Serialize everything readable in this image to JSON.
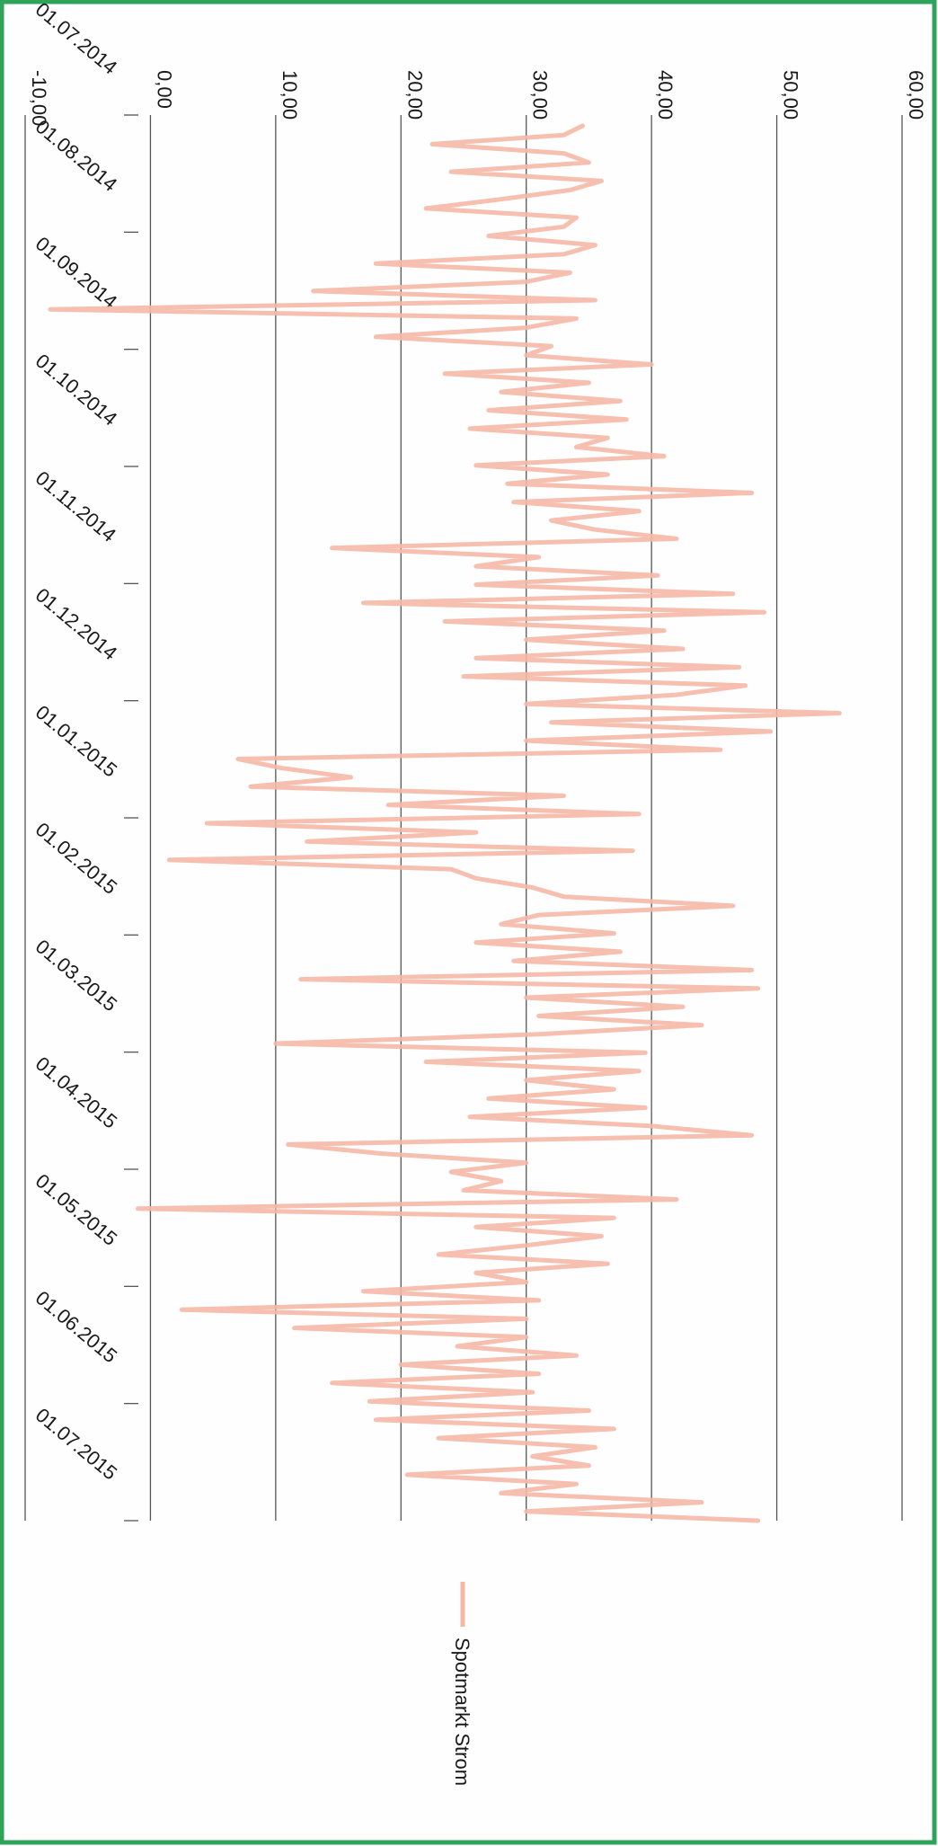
{
  "chart_data": {
    "type": "line",
    "title": "",
    "xlabel": "",
    "ylabel": "",
    "ylim": [
      -10,
      60
    ],
    "y_ticks": [
      "-10,00",
      "0,00",
      "10,00",
      "20,00",
      "30,00",
      "40,00",
      "50,00",
      "60,00"
    ],
    "x_tick_labels": [
      "01.07.2014",
      "01.08.2014",
      "01.09.2014",
      "01.10.2014",
      "01.11.2014",
      "01.12.2014",
      "01.01.2015",
      "01.02.2015",
      "01.03.2015",
      "01.04.2015",
      "01.05.2015",
      "01.06.2015",
      "01.07.2015"
    ],
    "grid": true,
    "legend_placement": "right",
    "orientation": "rotated-90",
    "series": [
      {
        "name": "Spotmarkt Strom",
        "color": "#f5b8a6",
        "values": [
          34.5,
          33.0,
          22.5,
          33.0,
          35.0,
          24.0,
          36.0,
          33.5,
          28.0,
          22.0,
          34.0,
          33.0,
          27.0,
          35.5,
          33.0,
          18.0,
          33.5,
          30.0,
          13.0,
          35.5,
          -8.0,
          34.0,
          30.0,
          18.0,
          32.0,
          30.0,
          40.0,
          23.5,
          35.0,
          28.0,
          37.5,
          27.0,
          38.0,
          25.5,
          36.5,
          34.0,
          41.0,
          26.0,
          36.5,
          28.5,
          48.0,
          29.0,
          39.0,
          32.0,
          35.5,
          42.0,
          14.5,
          31.0,
          26.0,
          40.5,
          26.0,
          46.5,
          17.0,
          49.0,
          23.5,
          41.0,
          30.0,
          42.5,
          26.0,
          47.0,
          25.0,
          47.5,
          42.0,
          30.0,
          55.0,
          32.0,
          49.5,
          30.0,
          45.5,
          7.0,
          10.5,
          16.0,
          8.0,
          33.0,
          19.0,
          39.0,
          4.5,
          26.0,
          12.5,
          38.5,
          1.5,
          24.0,
          26.0,
          30.5,
          33.0,
          46.5,
          31.0,
          28.0,
          37.0,
          26.0,
          37.5,
          29.0,
          48.0,
          12.0,
          48.5,
          30.0,
          42.5,
          31.0,
          44.0,
          31.0,
          10.0,
          39.5,
          22.0,
          39.0,
          30.0,
          37.0,
          27.0,
          39.5,
          25.5,
          40.0,
          48.0,
          11.0,
          18.5,
          30.0,
          24.0,
          28.0,
          25.0,
          42.0,
          -1.0,
          37.0,
          26.0,
          36.0,
          30.0,
          23.0,
          36.5,
          26.0,
          30.0,
          17.0,
          31.0,
          2.5,
          30.0,
          11.5,
          30.0,
          24.5,
          34.0,
          20.0,
          31.0,
          14.5,
          30.5,
          17.5,
          35.0,
          18.0,
          37.0,
          23.0,
          35.5,
          30.5,
          35.0,
          20.5,
          34.0,
          28.0,
          44.0,
          30.0,
          48.5
        ]
      }
    ]
  }
}
